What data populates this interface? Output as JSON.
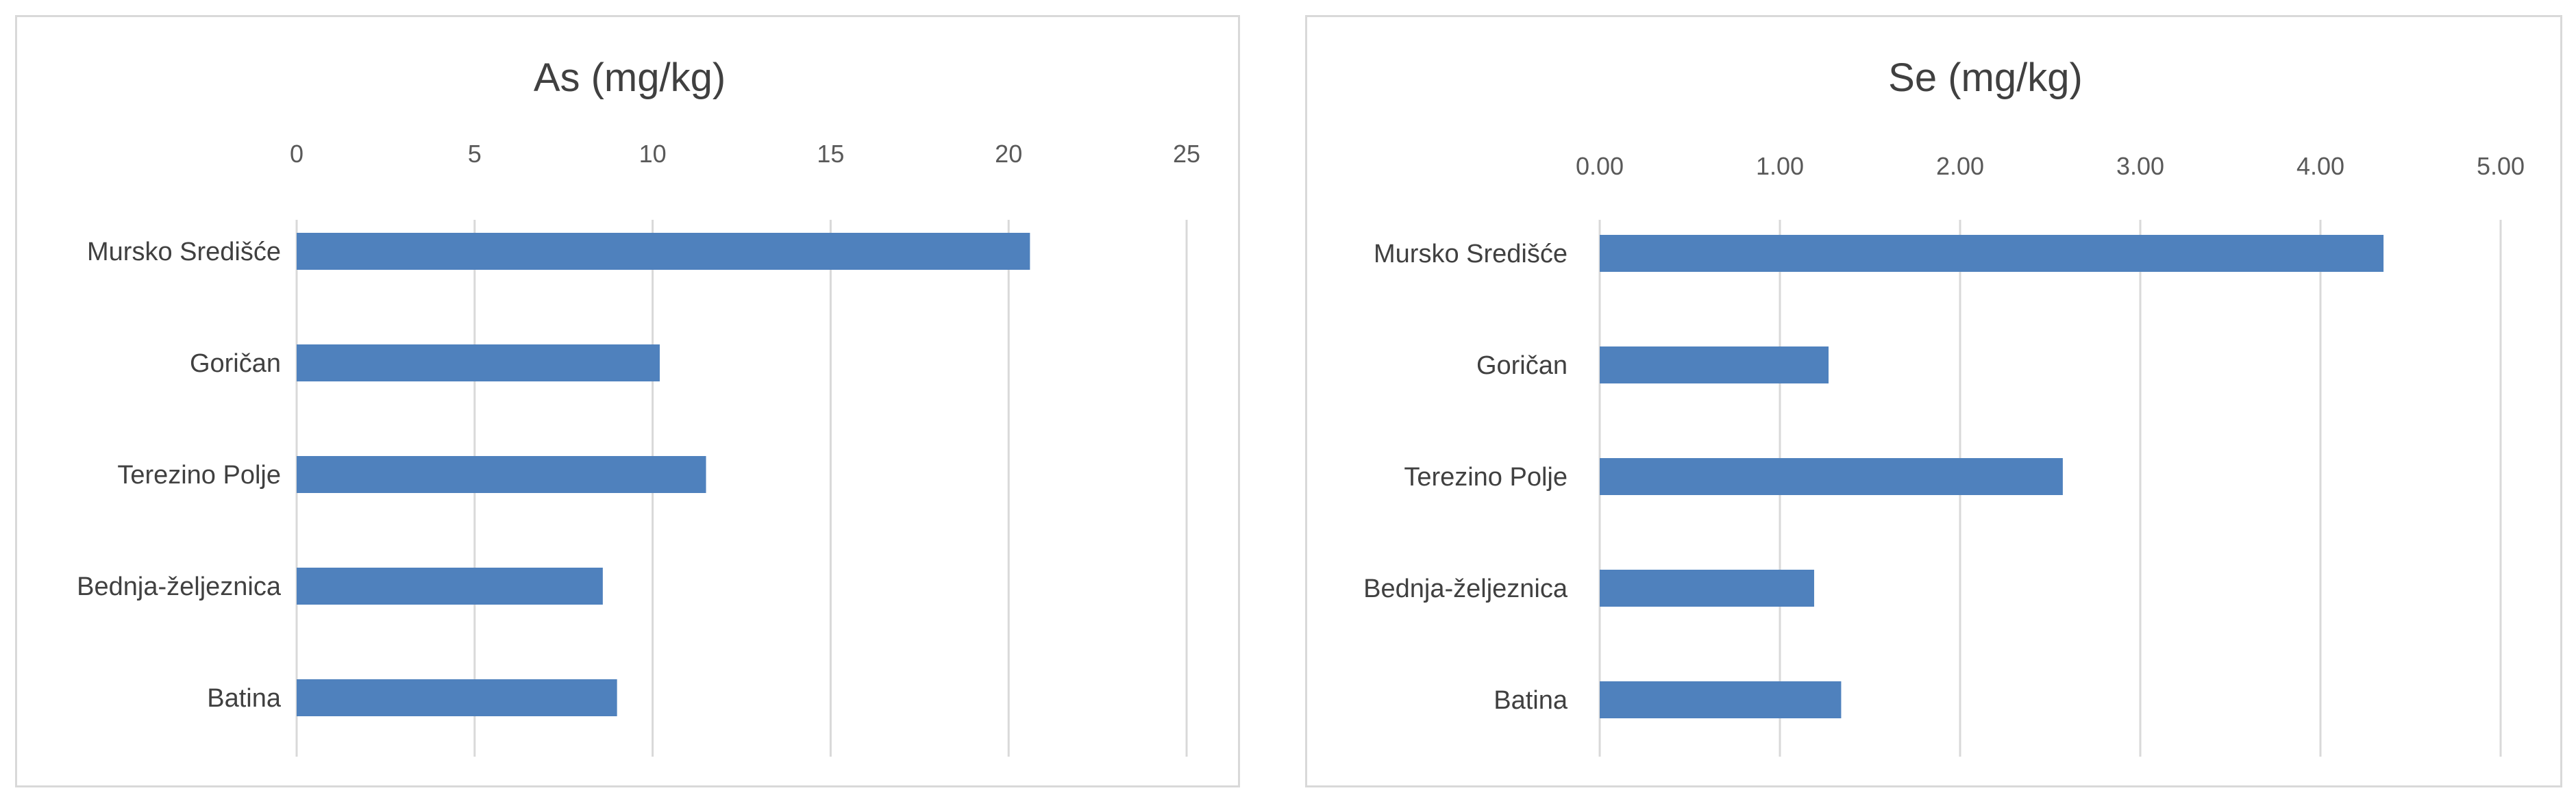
{
  "chart_data": [
    {
      "type": "bar",
      "orientation": "horizontal",
      "title": "As (mg/kg)",
      "categories": [
        "Mursko Središće",
        "Goričan",
        "Terezino Polje",
        "Bednja-željeznica",
        "Batina"
      ],
      "values": [
        20.6,
        10.2,
        11.5,
        8.6,
        9.0
      ],
      "xlim": [
        0,
        25
      ],
      "ticks": [
        "0",
        "5",
        "10",
        "15",
        "20",
        "25"
      ],
      "tick_values": [
        0,
        5,
        10,
        15,
        20,
        25
      ],
      "axis_position": "top",
      "grid": true,
      "color": "#4f81bd"
    },
    {
      "type": "bar",
      "orientation": "horizontal",
      "title": "Se (mg/kg)",
      "categories": [
        "Mursko Središće",
        "Goričan",
        "Terezino Polje",
        "Bednja-željeznica",
        "Batina"
      ],
      "values": [
        4.35,
        1.27,
        2.57,
        1.19,
        1.34
      ],
      "xlim": [
        0,
        5
      ],
      "ticks": [
        "0.00",
        "1.00",
        "2.00",
        "3.00",
        "4.00",
        "5.00"
      ],
      "tick_values": [
        0,
        1,
        2,
        3,
        4,
        5
      ],
      "axis_position": "top",
      "grid": true,
      "color": "#4f81bd"
    }
  ]
}
